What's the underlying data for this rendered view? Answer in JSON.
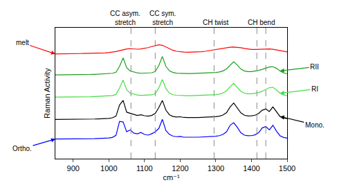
{
  "chart_data": {
    "type": "line",
    "x_label": "cm⁻¹",
    "y_label": "Raman Activity",
    "xlim": [
      850,
      1500
    ],
    "xticks": [
      900,
      1000,
      1100,
      1200,
      1300,
      1400,
      1500
    ],
    "ylim": [
      0,
      10
    ],
    "tick_labels": "x",
    "grid": false,
    "reference_lines": [
      1062,
      1130,
      1295,
      1415,
      1440
    ],
    "annotations": [
      {
        "text": "CC asym. stretch",
        "x": 1045
      },
      {
        "text": "CC sym. stretch",
        "x": 1150
      },
      {
        "text": "CH twist",
        "x": 1300
      },
      {
        "text": "CH bend",
        "x": 1428
      }
    ],
    "x": [
      850,
      860,
      870,
      880,
      890,
      900,
      910,
      920,
      930,
      940,
      950,
      960,
      970,
      980,
      990,
      1000,
      1010,
      1020,
      1030,
      1040,
      1050,
      1060,
      1070,
      1080,
      1090,
      1100,
      1110,
      1120,
      1130,
      1140,
      1150,
      1160,
      1170,
      1180,
      1190,
      1200,
      1210,
      1220,
      1230,
      1240,
      1250,
      1260,
      1270,
      1280,
      1290,
      1300,
      1310,
      1320,
      1330,
      1340,
      1350,
      1360,
      1370,
      1380,
      1390,
      1400,
      1410,
      1420,
      1430,
      1440,
      1450,
      1460,
      1470,
      1480,
      1490,
      1500
    ],
    "series": [
      {
        "name": "melt",
        "color": "#ff0000",
        "values": [
          8.0,
          8.0,
          8.01,
          8.01,
          8.02,
          8.02,
          8.03,
          8.03,
          8.04,
          8.04,
          8.05,
          8.05,
          8.06,
          8.07,
          8.08,
          8.1,
          8.13,
          8.18,
          8.25,
          8.33,
          8.38,
          8.4,
          8.38,
          8.36,
          8.38,
          8.42,
          8.48,
          8.56,
          8.65,
          8.7,
          8.66,
          8.52,
          8.38,
          8.27,
          8.2,
          8.16,
          8.14,
          8.13,
          8.13,
          8.14,
          8.15,
          8.17,
          8.2,
          8.24,
          8.29,
          8.34,
          8.39,
          8.44,
          8.48,
          8.51,
          8.52,
          8.51,
          8.47,
          8.42,
          8.37,
          8.34,
          8.34,
          8.36,
          8.38,
          8.39,
          8.38,
          8.35,
          8.3,
          8.24,
          8.19,
          8.15
        ]
      },
      {
        "name": "RII",
        "color": "#1a9e1a",
        "values": [
          6.4,
          6.4,
          6.4,
          6.41,
          6.41,
          6.41,
          6.42,
          6.42,
          6.42,
          6.43,
          6.43,
          6.44,
          6.45,
          6.46,
          6.47,
          6.49,
          6.52,
          6.6,
          7.05,
          7.7,
          6.95,
          6.7,
          6.62,
          6.55,
          6.52,
          6.52,
          6.53,
          6.56,
          6.65,
          7.1,
          7.8,
          7.05,
          6.7,
          6.58,
          6.53,
          6.51,
          6.5,
          6.5,
          6.5,
          6.51,
          6.51,
          6.52,
          6.53,
          6.54,
          6.56,
          6.58,
          6.62,
          6.7,
          6.85,
          7.15,
          7.4,
          7.15,
          6.85,
          6.7,
          6.65,
          6.65,
          6.68,
          6.74,
          6.82,
          6.92,
          7.0,
          7.02,
          6.9,
          6.7,
          6.55,
          6.48
        ]
      },
      {
        "name": "RI",
        "color": "#44dd44",
        "values": [
          4.7,
          4.7,
          4.7,
          4.71,
          4.71,
          4.71,
          4.72,
          4.72,
          4.72,
          4.73,
          4.73,
          4.74,
          4.75,
          4.76,
          4.77,
          4.79,
          4.82,
          4.9,
          5.4,
          6.0,
          5.25,
          5.0,
          4.92,
          4.86,
          4.83,
          4.83,
          4.84,
          4.87,
          4.96,
          5.4,
          6.05,
          5.35,
          5.0,
          4.88,
          4.84,
          4.82,
          4.81,
          4.81,
          4.81,
          4.82,
          4.82,
          4.83,
          4.84,
          4.85,
          4.87,
          4.89,
          4.93,
          5.01,
          5.18,
          5.5,
          5.75,
          5.45,
          5.15,
          5.0,
          4.95,
          4.95,
          4.98,
          5.05,
          5.15,
          5.3,
          5.42,
          5.45,
          5.25,
          5.0,
          4.86,
          4.8
        ]
      },
      {
        "name": "Mono.",
        "color": "#000000",
        "values": [
          3.0,
          3.0,
          3.01,
          3.0,
          3.01,
          3.01,
          3.02,
          3.01,
          3.02,
          3.02,
          3.03,
          3.03,
          3.04,
          3.05,
          3.06,
          3.08,
          3.12,
          3.25,
          4.1,
          4.45,
          3.55,
          3.45,
          3.38,
          3.3,
          3.35,
          3.28,
          3.25,
          3.3,
          3.45,
          3.9,
          4.45,
          3.7,
          3.35,
          3.22,
          3.18,
          3.2,
          3.15,
          3.14,
          3.13,
          3.14,
          3.14,
          3.15,
          3.16,
          3.17,
          3.19,
          3.21,
          3.25,
          3.33,
          3.52,
          3.95,
          4.25,
          3.9,
          3.5,
          3.32,
          3.26,
          3.27,
          3.32,
          3.45,
          3.7,
          3.8,
          3.6,
          3.95,
          3.55,
          3.22,
          3.1,
          3.06
        ]
      },
      {
        "name": "Ortho.",
        "color": "#0000ff",
        "values": [
          1.5,
          1.5,
          1.51,
          1.5,
          1.51,
          1.51,
          1.52,
          1.51,
          1.52,
          1.52,
          1.53,
          1.53,
          1.54,
          1.55,
          1.56,
          1.58,
          1.62,
          1.78,
          2.85,
          2.8,
          2.05,
          2.2,
          1.95,
          1.9,
          2.0,
          1.85,
          1.8,
          1.9,
          2.05,
          2.3,
          3.0,
          2.15,
          1.85,
          1.72,
          1.68,
          1.7,
          1.64,
          1.63,
          1.63,
          1.64,
          1.64,
          1.65,
          1.66,
          1.67,
          1.69,
          1.71,
          1.76,
          1.85,
          2.05,
          2.55,
          2.75,
          2.4,
          1.98,
          1.8,
          1.75,
          1.76,
          1.82,
          1.98,
          2.35,
          2.45,
          2.2,
          2.55,
          2.1,
          1.75,
          1.62,
          1.57
        ]
      }
    ]
  }
}
